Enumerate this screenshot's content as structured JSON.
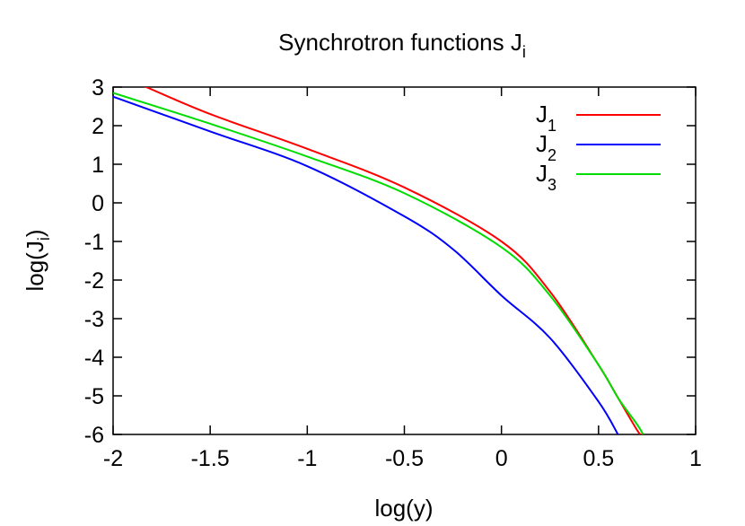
{
  "chart_data": {
    "type": "line",
    "title": {
      "main": "Synchrotron functions J",
      "sub": "i"
    },
    "xlabel": "log(y)",
    "ylabel": {
      "main": "log(J",
      "sub": "i",
      "close": ")"
    },
    "xlim": [
      -2,
      1
    ],
    "ylim": [
      -6,
      3
    ],
    "x_ticks": [
      -2,
      -1.5,
      -1,
      -0.5,
      0,
      0.5,
      1
    ],
    "x_tick_labels": [
      "-2",
      "-1.5",
      "-1",
      "-0.5",
      "0",
      "0.5",
      "1"
    ],
    "y_ticks": [
      3,
      2,
      1,
      0,
      -1,
      -2,
      -3,
      -4,
      -5,
      -6
    ],
    "y_tick_labels": [
      "3",
      "2",
      "1",
      "0",
      "-1",
      "-2",
      "-3",
      "-4",
      "-5",
      "-6"
    ],
    "grid": false,
    "legend_position": "top-right",
    "series": [
      {
        "name": "J",
        "name_sub": "1",
        "color": "#ff0000",
        "x": [
          -2.0,
          -1.83,
          -1.5,
          -1.0,
          -0.5,
          0.0,
          0.25,
          0.5,
          0.6,
          0.7,
          0.72
        ],
        "y": [
          3.35,
          3.0,
          2.3,
          1.4,
          0.4,
          -1.0,
          -2.3,
          -4.2,
          -5.05,
          -5.9,
          -6.0
        ]
      },
      {
        "name": "J",
        "name_sub": "2",
        "color": "#0000ff",
        "x": [
          -2.0,
          -1.5,
          -1.0,
          -0.5,
          -0.25,
          0.0,
          0.25,
          0.5,
          0.6
        ],
        "y": [
          2.75,
          1.85,
          0.95,
          -0.35,
          -1.2,
          -2.4,
          -3.5,
          -5.15,
          -6.0
        ]
      },
      {
        "name": "J",
        "name_sub": "3",
        "color": "#00dd00",
        "x": [
          -2.0,
          -1.5,
          -1.0,
          -0.5,
          0.0,
          0.25,
          0.5,
          0.6,
          0.7,
          0.73
        ],
        "y": [
          2.85,
          2.05,
          1.2,
          0.25,
          -1.15,
          -2.4,
          -4.2,
          -5.05,
          -5.75,
          -6.0
        ]
      }
    ]
  }
}
